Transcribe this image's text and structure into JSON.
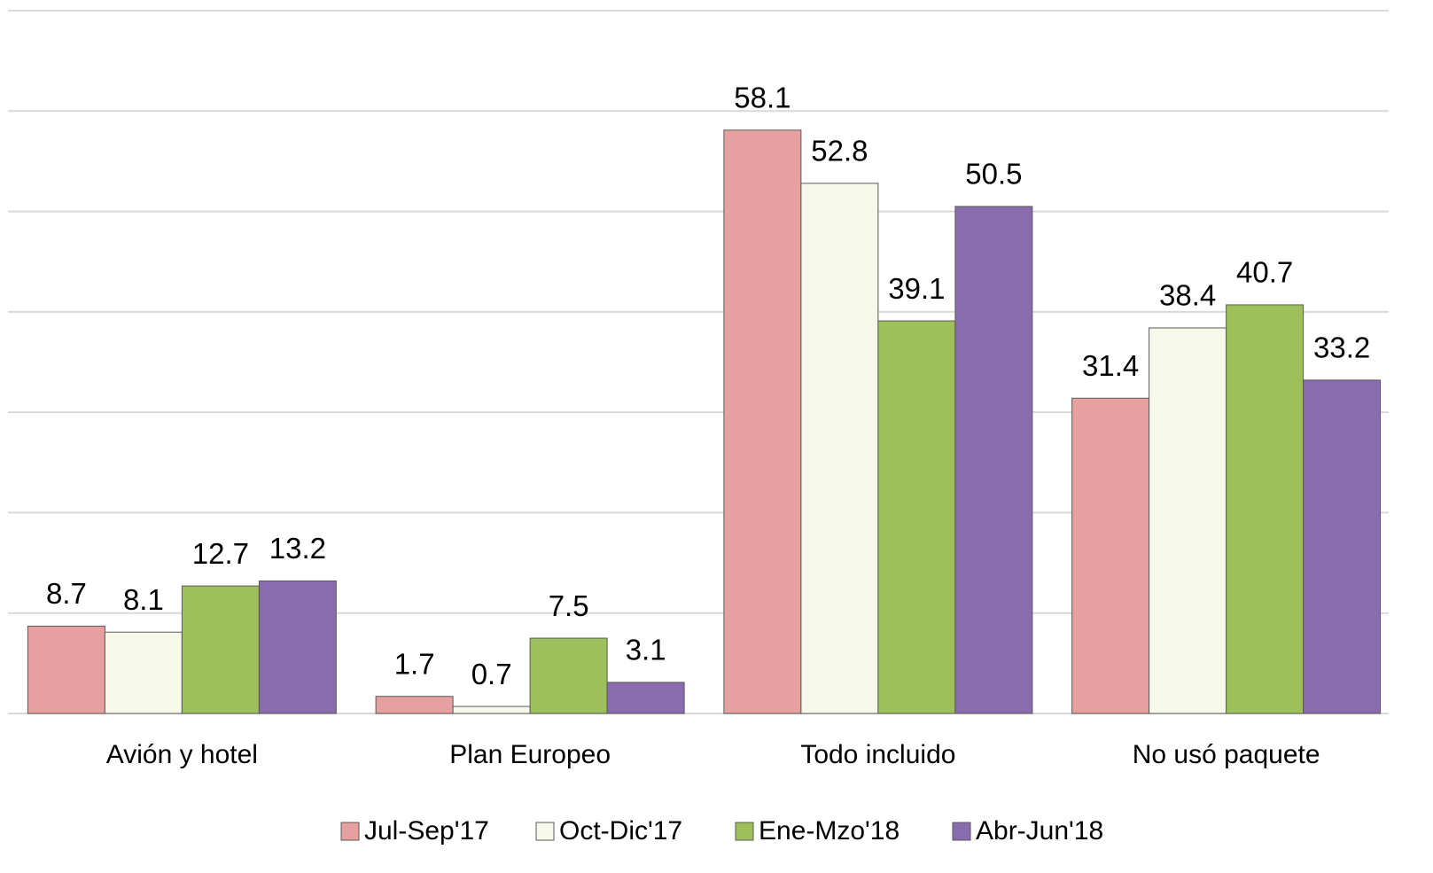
{
  "chart_data": {
    "type": "bar",
    "categories": [
      "Avión y hotel",
      "Plan Europeo",
      "Todo incluido",
      "No usó paquete"
    ],
    "series": [
      {
        "name": "Jul-Sep'17",
        "color": "#e6a09f",
        "values": [
          8.7,
          1.7,
          58.1,
          31.4
        ]
      },
      {
        "name": "Oct-Dic'17",
        "color": "#f6f8ea",
        "values": [
          8.1,
          0.7,
          52.8,
          38.4
        ]
      },
      {
        "name": "Ene-Mzo'18",
        "color": "#9dc05b",
        "values": [
          12.7,
          7.5,
          39.1,
          40.7
        ]
      },
      {
        "name": "Abr-Jun'18",
        "color": "#8a6bad",
        "values": [
          13.2,
          3.1,
          50.5,
          33.2
        ]
      }
    ],
    "ylim": [
      0,
      70
    ],
    "yticks": [
      0,
      10,
      20,
      30,
      40,
      50,
      60,
      70
    ],
    "grid": true,
    "legend": "bottom"
  }
}
